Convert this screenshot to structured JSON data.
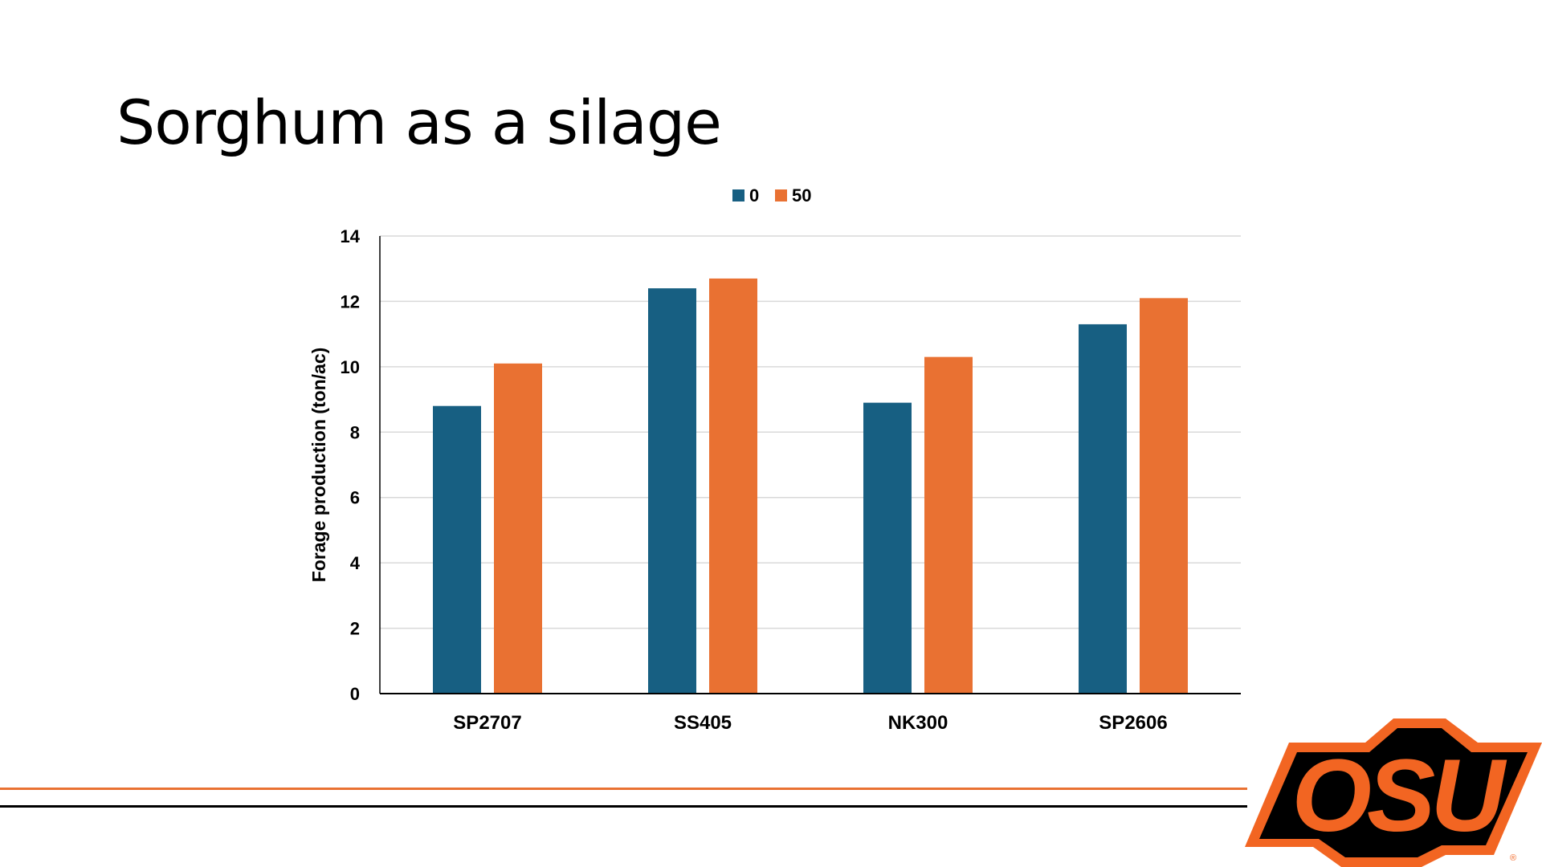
{
  "slide": {
    "title": "Sorghum as a silage"
  },
  "colors": {
    "series_0": "#175F82",
    "series_50": "#E97132",
    "rule_orange": "#E97132",
    "rule_black": "#000000",
    "logo_orange": "#F26522",
    "logo_black": "#000000"
  },
  "logo": {
    "text": "OSU"
  },
  "chart_data": {
    "type": "bar",
    "categories": [
      "SP2707",
      "SS405",
      "NK300",
      "SP2606"
    ],
    "series": [
      {
        "name": "0",
        "values": [
          8.8,
          12.4,
          8.9,
          11.3
        ]
      },
      {
        "name": "50",
        "values": [
          10.1,
          12.7,
          10.3,
          12.1
        ]
      }
    ],
    "title": "",
    "xlabel": "",
    "ylabel": "Forage production (ton/ac)",
    "ylim": [
      0,
      14
    ],
    "yticks": [
      0,
      2,
      4,
      6,
      8,
      10,
      12,
      14
    ],
    "grid": true,
    "legend": "top"
  }
}
